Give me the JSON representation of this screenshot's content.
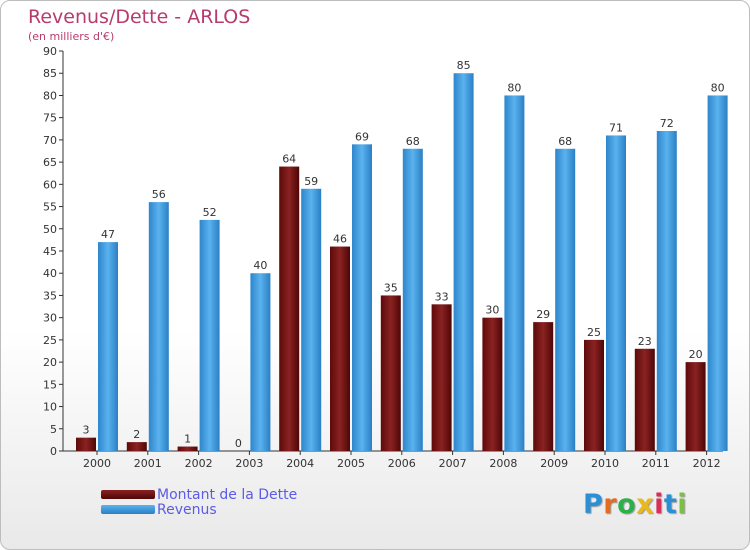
{
  "chart_data": {
    "type": "bar",
    "title": "Revenus/Dette - ARLOS",
    "subtitle": "(en milliers d'€)",
    "categories": [
      "2000",
      "2001",
      "2002",
      "2003",
      "2004",
      "2005",
      "2006",
      "2007",
      "2008",
      "2009",
      "2010",
      "2011",
      "2012"
    ],
    "series": [
      {
        "name": "Montant de la Dette",
        "color": "#7a1414",
        "values": [
          3,
          2,
          1,
          0,
          64,
          46,
          35,
          33,
          30,
          29,
          25,
          23,
          20
        ]
      },
      {
        "name": "Revenus",
        "color": "#3f9fe0",
        "values": [
          47,
          56,
          52,
          40,
          59,
          69,
          68,
          85,
          80,
          68,
          71,
          72,
          80
        ]
      }
    ],
    "ylim": [
      0,
      90
    ],
    "ytick_step": 5,
    "grid": false,
    "legend_position": "bottom-left"
  },
  "branding": {
    "logo_letters": [
      "P",
      "r",
      "o",
      "x",
      "i",
      "t",
      "i"
    ],
    "logo_colors": [
      "#2b8fd6",
      "#e86a1c",
      "#2bb04a",
      "#e8b81c",
      "#d6305a",
      "#2b8fd6",
      "#7bc043"
    ]
  }
}
